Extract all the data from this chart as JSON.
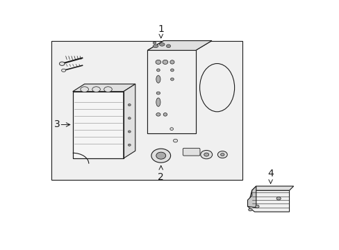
{
  "bg_color": "#ffffff",
  "inner_bg": "#eeeeee",
  "line_color": "#1a1a1a",
  "fill_white": "#ffffff",
  "fill_light": "#f0f0f0",
  "fill_mid": "#e0e0e0",
  "fill_dark": "#c8c8c8",
  "label_1": "1",
  "label_2": "2",
  "label_3": "3",
  "label_4": "4",
  "font_size": 9,
  "lw_main": 0.8,
  "lw_thin": 0.5
}
